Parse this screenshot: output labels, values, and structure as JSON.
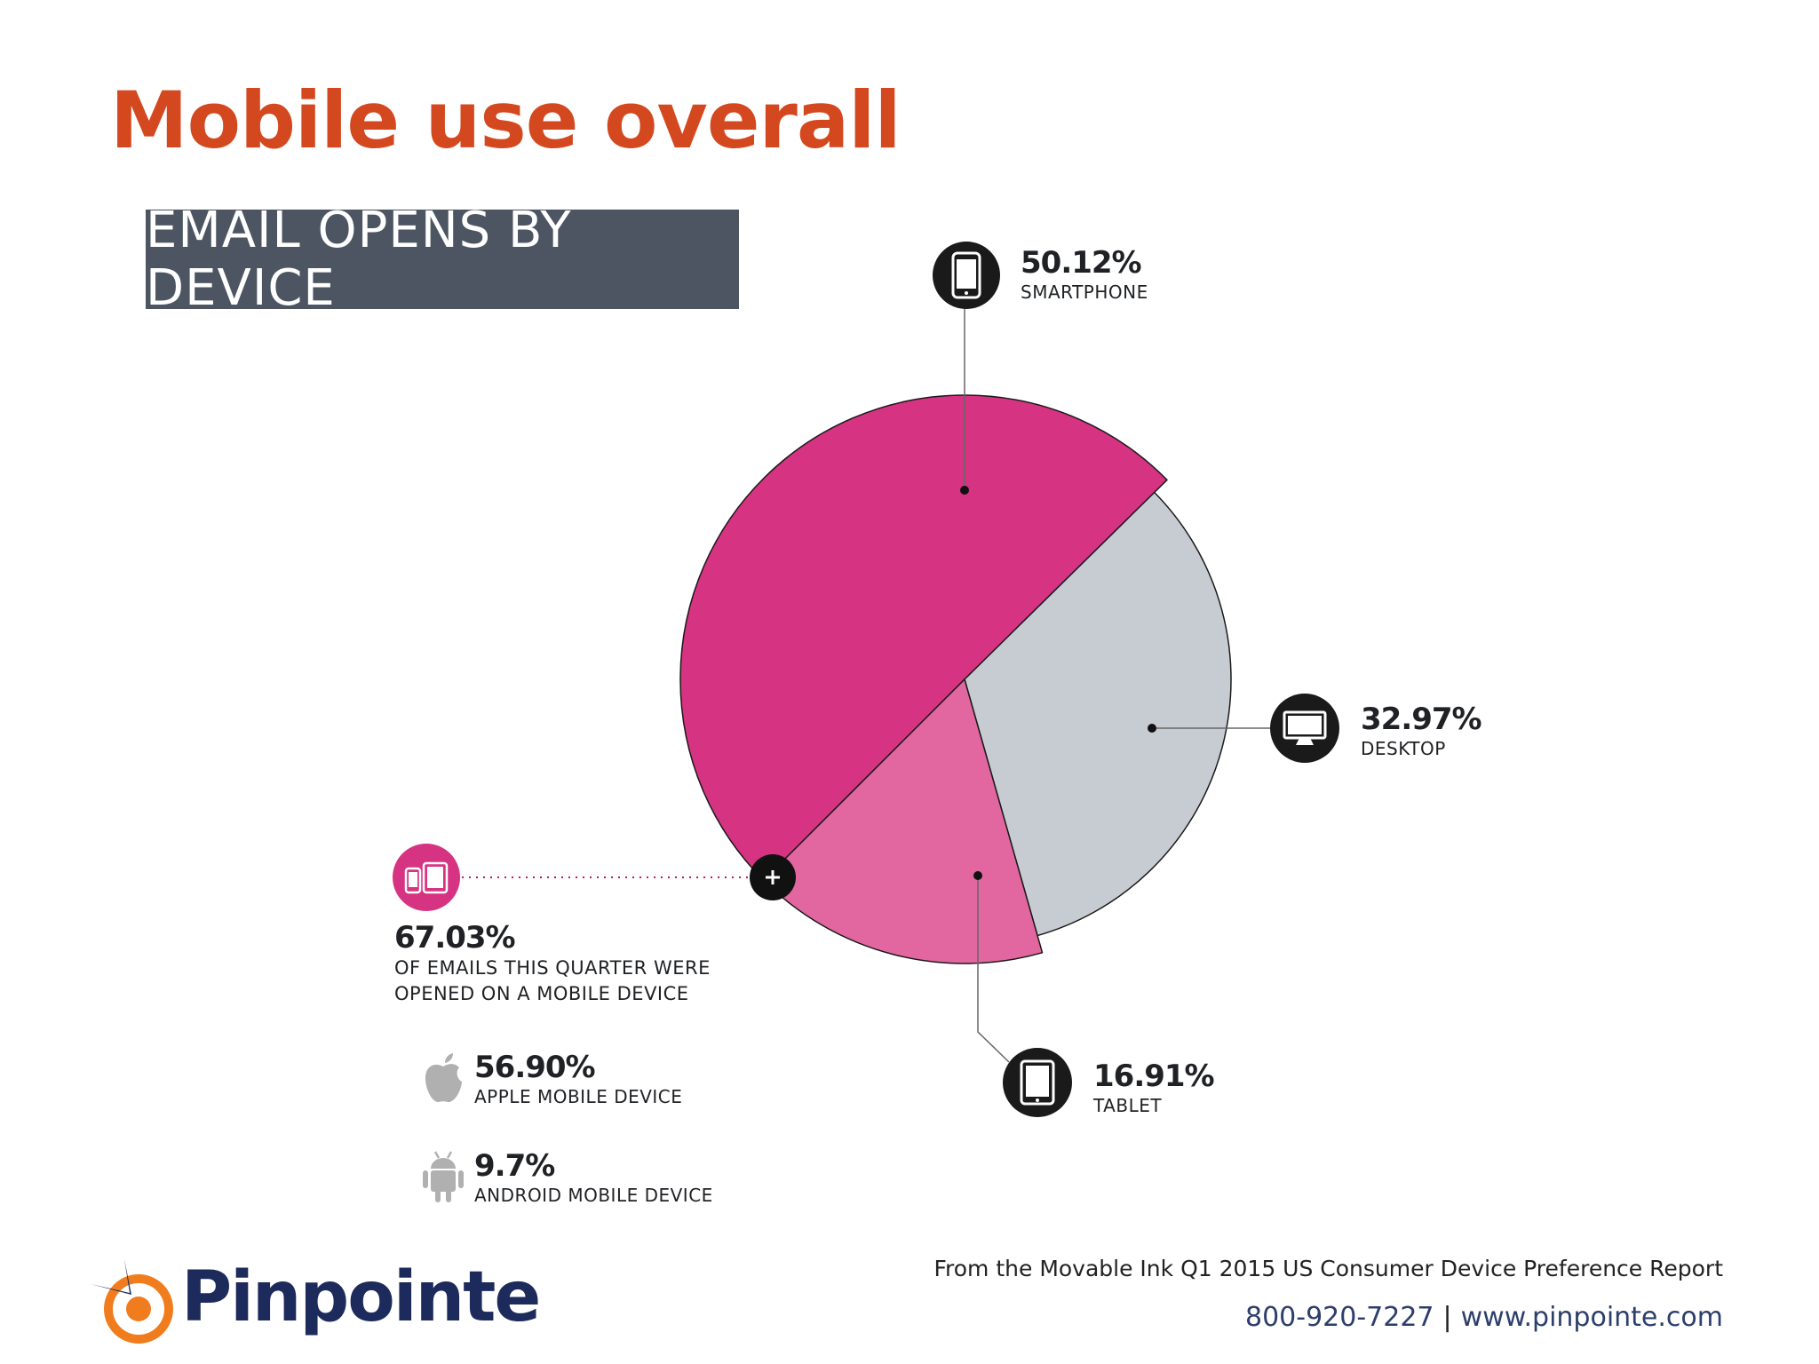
{
  "title": "Mobile use overall",
  "subtitle": "EMAIL OPENS BY DEVICE",
  "chart_data": {
    "type": "pie",
    "title": "EMAIL OPENS BY DEVICE",
    "slices": [
      {
        "value_label": "50.12%",
        "label": "SMARTPHONE",
        "value": 50.12,
        "color": "#d63383",
        "icon": "smartphone-icon"
      },
      {
        "value_label": "32.97%",
        "label": "DESKTOP",
        "value": 32.97,
        "color": "#c7ccd3",
        "icon": "desktop-icon"
      },
      {
        "value_label": "16.91%",
        "label": "TABLET",
        "value": 16.91,
        "color": "#e2669f",
        "icon": "tablet-icon"
      }
    ]
  },
  "mobile_summary": {
    "value_label": "67.03%",
    "line1": "OF EMAILS THIS QUARTER WERE",
    "line2": "OPENED ON A MOBILE DEVICE",
    "icon": "mobile-devices-icon",
    "icon_color": "#d63383"
  },
  "mobile_breakdown": [
    {
      "value_label": "56.90%",
      "label": "APPLE MOBILE DEVICE",
      "icon": "apple-icon"
    },
    {
      "value_label": "9.7%",
      "label": "ANDROID MOBILE DEVICE",
      "icon": "android-icon"
    }
  ],
  "footer": {
    "source": "From the Movable Ink Q1 2015 US Consumer Device Preference Report",
    "phone": "800-920-7227",
    "separator": "|",
    "website": "www.pinpointe.com",
    "logo_text": "Pinpointe"
  }
}
